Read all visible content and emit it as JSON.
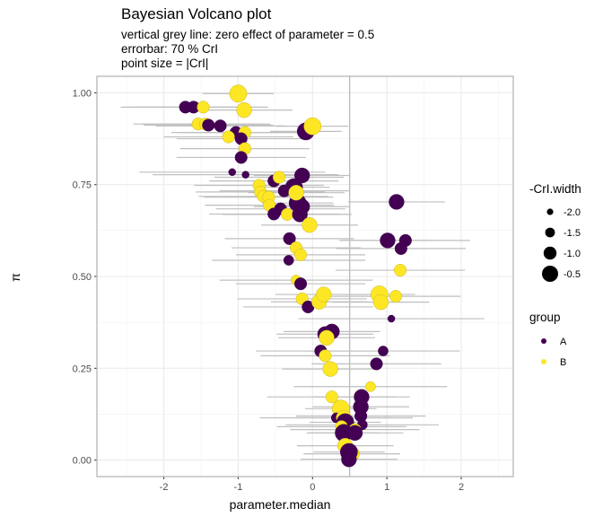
{
  "chart_data": {
    "type": "scatter",
    "title": "Bayesian Volcano plot",
    "subtitle": [
      "vertical grey line: zero effect of parameter = 0.5",
      "errorbar: 70 % CrI",
      "point size = |CrI|"
    ],
    "xlabel": "parameter.median",
    "ylabel": "π",
    "xlim": [
      -2.9,
      2.7
    ],
    "ylim": [
      -0.045,
      1.045
    ],
    "x_ticks": [
      -2,
      -1,
      0,
      1,
      2
    ],
    "x_tick_labels": [
      "-2",
      "-1",
      "0",
      "1",
      "2"
    ],
    "y_ticks": [
      0,
      0.25,
      0.5,
      0.75,
      1
    ],
    "y_tick_labels": [
      "0.00",
      "0.25",
      "0.50",
      "0.75",
      "1.00"
    ],
    "reference_line_x": 0.5,
    "grid": true,
    "legend_placement": "right",
    "size_legend": {
      "title": "-CrI.width",
      "values": [
        -2.0,
        -1.5,
        -1.0,
        -0.5
      ],
      "labels": [
        "-2.0",
        "-1.5",
        "-1.0",
        "-0.5"
      ]
    },
    "color_legend": {
      "title": "group",
      "labels": [
        "A",
        "B"
      ],
      "colors": {
        "A": "#440154",
        "B": "#FDE725"
      }
    },
    "errorbar_color": "#bfbfbf",
    "point_fields": [
      "x",
      "y",
      "group",
      "size",
      "crI_low",
      "crI_high"
    ],
    "points": [
      [
        -1.0,
        0.998,
        "B",
        -0.6,
        -1.48,
        -0.52
      ],
      [
        -1.71,
        0.961,
        "A",
        -1.3,
        -2.58,
        -0.84
      ],
      [
        -1.6,
        0.961,
        "A",
        -1.3,
        -2.47,
        -0.73
      ],
      [
        -1.47,
        0.961,
        "B",
        -1.3,
        -2.34,
        -0.6
      ],
      [
        -0.92,
        0.953,
        "B",
        -0.9,
        -1.57,
        -0.27
      ],
      [
        -1.54,
        0.915,
        "B",
        -1.3,
        -2.41,
        -0.67
      ],
      [
        -1.44,
        0.915,
        "B",
        -1.3,
        -2.31,
        -0.57
      ],
      [
        -1.4,
        0.912,
        "A",
        -1.3,
        -2.27,
        -0.53
      ],
      [
        -1.24,
        0.91,
        "A",
        -1.3,
        -2.11,
        -0.37
      ],
      [
        -0.09,
        0.895,
        "A",
        -0.6,
        -0.57,
        0.39
      ],
      [
        0.0,
        0.909,
        "B",
        -0.6,
        -0.48,
        0.48
      ],
      [
        -1.03,
        0.892,
        "A",
        -1.3,
        -1.9,
        -0.16
      ],
      [
        -0.91,
        0.892,
        "B",
        -1.3,
        -1.78,
        -0.04
      ],
      [
        -1.13,
        0.88,
        "B",
        -1.3,
        -2.0,
        -0.26
      ],
      [
        -0.96,
        0.875,
        "A",
        -1.3,
        -1.83,
        -0.09
      ],
      [
        -0.91,
        0.848,
        "B",
        -1.3,
        -1.78,
        -0.04
      ],
      [
        -0.96,
        0.824,
        "A",
        -1.3,
        -1.83,
        -0.09
      ],
      [
        -1.08,
        0.784,
        "A",
        -2.0,
        -2.33,
        0.17
      ],
      [
        -0.9,
        0.777,
        "A",
        -2.0,
        -2.15,
        0.35
      ],
      [
        -0.52,
        0.76,
        "A",
        -1.3,
        -1.39,
        0.35
      ],
      [
        -0.45,
        0.77,
        "B",
        -1.3,
        -1.32,
        0.42
      ],
      [
        -0.14,
        0.775,
        "A",
        -0.9,
        -0.79,
        0.51
      ],
      [
        -0.72,
        0.748,
        "B",
        -1.3,
        -1.59,
        0.15
      ],
      [
        -0.7,
        0.73,
        "B",
        -1.3,
        -1.57,
        0.17
      ],
      [
        -0.38,
        0.733,
        "A",
        -1.3,
        -1.25,
        0.49
      ],
      [
        -0.25,
        0.743,
        "A",
        -0.6,
        -0.73,
        0.23
      ],
      [
        -0.66,
        0.718,
        "B",
        -1.3,
        -1.53,
        0.21
      ],
      [
        -0.59,
        0.716,
        "B",
        -1.3,
        -1.46,
        0.28
      ],
      [
        -0.2,
        0.7,
        "A",
        -0.6,
        -0.68,
        0.28
      ],
      [
        -0.14,
        0.69,
        "A",
        -0.9,
        -0.79,
        0.51
      ],
      [
        -0.22,
        0.728,
        "B",
        -0.9,
        -0.87,
        0.43
      ],
      [
        -0.58,
        0.694,
        "B",
        -1.3,
        -1.45,
        0.29
      ],
      [
        -0.43,
        0.684,
        "A",
        -1.3,
        -1.3,
        0.44
      ],
      [
        -0.52,
        0.67,
        "A",
        -1.3,
        -1.39,
        0.35
      ],
      [
        -0.34,
        0.669,
        "B",
        -1.3,
        -1.21,
        0.53
      ],
      [
        -0.17,
        0.669,
        "A",
        -0.9,
        -0.82,
        0.48
      ],
      [
        -0.04,
        0.64,
        "B",
        -0.9,
        -0.69,
        0.61
      ],
      [
        1.13,
        0.703,
        "A",
        -0.9,
        0.48,
        1.78
      ],
      [
        -0.31,
        0.603,
        "A",
        -1.3,
        -1.18,
        0.56
      ],
      [
        -0.22,
        0.578,
        "B",
        -1.3,
        -1.09,
        0.65
      ],
      [
        -0.16,
        0.559,
        "B",
        -1.3,
        -1.03,
        0.71
      ],
      [
        -0.32,
        0.544,
        "A",
        -1.6,
        -1.35,
        0.71
      ],
      [
        1.01,
        0.598,
        "A",
        -0.9,
        0.36,
        1.66
      ],
      [
        1.25,
        0.598,
        "A",
        -1.3,
        0.38,
        2.12
      ],
      [
        1.19,
        0.576,
        "A",
        -1.3,
        0.32,
        2.06
      ],
      [
        1.18,
        0.517,
        "B",
        -1.3,
        0.31,
        2.05
      ],
      [
        -0.22,
        0.49,
        "B",
        -1.6,
        -1.25,
        0.81
      ],
      [
        -0.16,
        0.48,
        "A",
        -1.3,
        -1.03,
        0.71
      ],
      [
        -0.14,
        0.439,
        "B",
        -1.3,
        -1.01,
        0.73
      ],
      [
        -0.06,
        0.417,
        "A",
        -1.3,
        -0.93,
        0.81
      ],
      [
        0.09,
        0.431,
        "B",
        -0.9,
        -0.56,
        0.74
      ],
      [
        0.15,
        0.451,
        "B",
        -0.9,
        -0.5,
        0.8
      ],
      [
        0.9,
        0.451,
        "B",
        -0.6,
        0.42,
        1.38
      ],
      [
        0.92,
        0.43,
        "B",
        -0.9,
        0.27,
        1.57
      ],
      [
        1.12,
        0.446,
        "B",
        -1.3,
        0.25,
        1.99
      ],
      [
        1.06,
        0.385,
        "A",
        -2.0,
        -0.19,
        2.31
      ],
      [
        0.26,
        0.35,
        "A",
        -0.9,
        -0.39,
        0.91
      ],
      [
        0.17,
        0.343,
        "A",
        -0.9,
        -0.48,
        0.82
      ],
      [
        0.19,
        0.333,
        "B",
        -0.9,
        -0.46,
        0.84
      ],
      [
        0.11,
        0.297,
        "A",
        -1.3,
        -0.76,
        0.98
      ],
      [
        0.17,
        0.284,
        "B",
        -1.3,
        -0.7,
        1.04
      ],
      [
        0.95,
        0.297,
        "A",
        -1.6,
        -0.08,
        1.98
      ],
      [
        0.24,
        0.248,
        "B",
        -0.9,
        -0.41,
        0.89
      ],
      [
        0.86,
        0.262,
        "A",
        -1.3,
        -0.01,
        1.73
      ],
      [
        0.78,
        0.2,
        "B",
        -1.6,
        -0.25,
        1.81
      ],
      [
        0.26,
        0.172,
        "B",
        -1.3,
        -0.61,
        1.13
      ],
      [
        0.66,
        0.172,
        "A",
        -0.9,
        0.01,
        1.31
      ],
      [
        0.65,
        0.145,
        "A",
        -0.9,
        0.0,
        1.3
      ],
      [
        0.38,
        0.14,
        "B",
        -0.6,
        -0.1,
        0.86
      ],
      [
        0.65,
        0.12,
        "A",
        -1.3,
        -0.22,
        1.52
      ],
      [
        0.32,
        0.115,
        "A",
        -1.6,
        -0.71,
        1.35
      ],
      [
        0.42,
        0.115,
        "B",
        -0.9,
        -0.23,
        1.07
      ],
      [
        0.44,
        0.103,
        "A",
        -0.6,
        -0.04,
        0.92
      ],
      [
        0.67,
        0.096,
        "A",
        -1.6,
        -0.36,
        1.7
      ],
      [
        0.39,
        0.091,
        "B",
        -1.3,
        -0.48,
        1.26
      ],
      [
        0.57,
        0.083,
        "B",
        -1.3,
        -0.3,
        1.44
      ],
      [
        0.42,
        0.074,
        "A",
        -0.6,
        -0.06,
        0.9
      ],
      [
        0.57,
        0.074,
        "A",
        -0.9,
        -0.08,
        1.22
      ],
      [
        0.44,
        0.039,
        "B",
        -0.9,
        -0.21,
        1.09
      ],
      [
        0.53,
        0.017,
        "B",
        -0.9,
        -0.12,
        1.18
      ],
      [
        0.49,
        0.022,
        "A",
        -0.6,
        0.01,
        0.97
      ],
      [
        0.49,
        0.002,
        "A",
        -0.9,
        -0.16,
        1.14
      ]
    ]
  }
}
